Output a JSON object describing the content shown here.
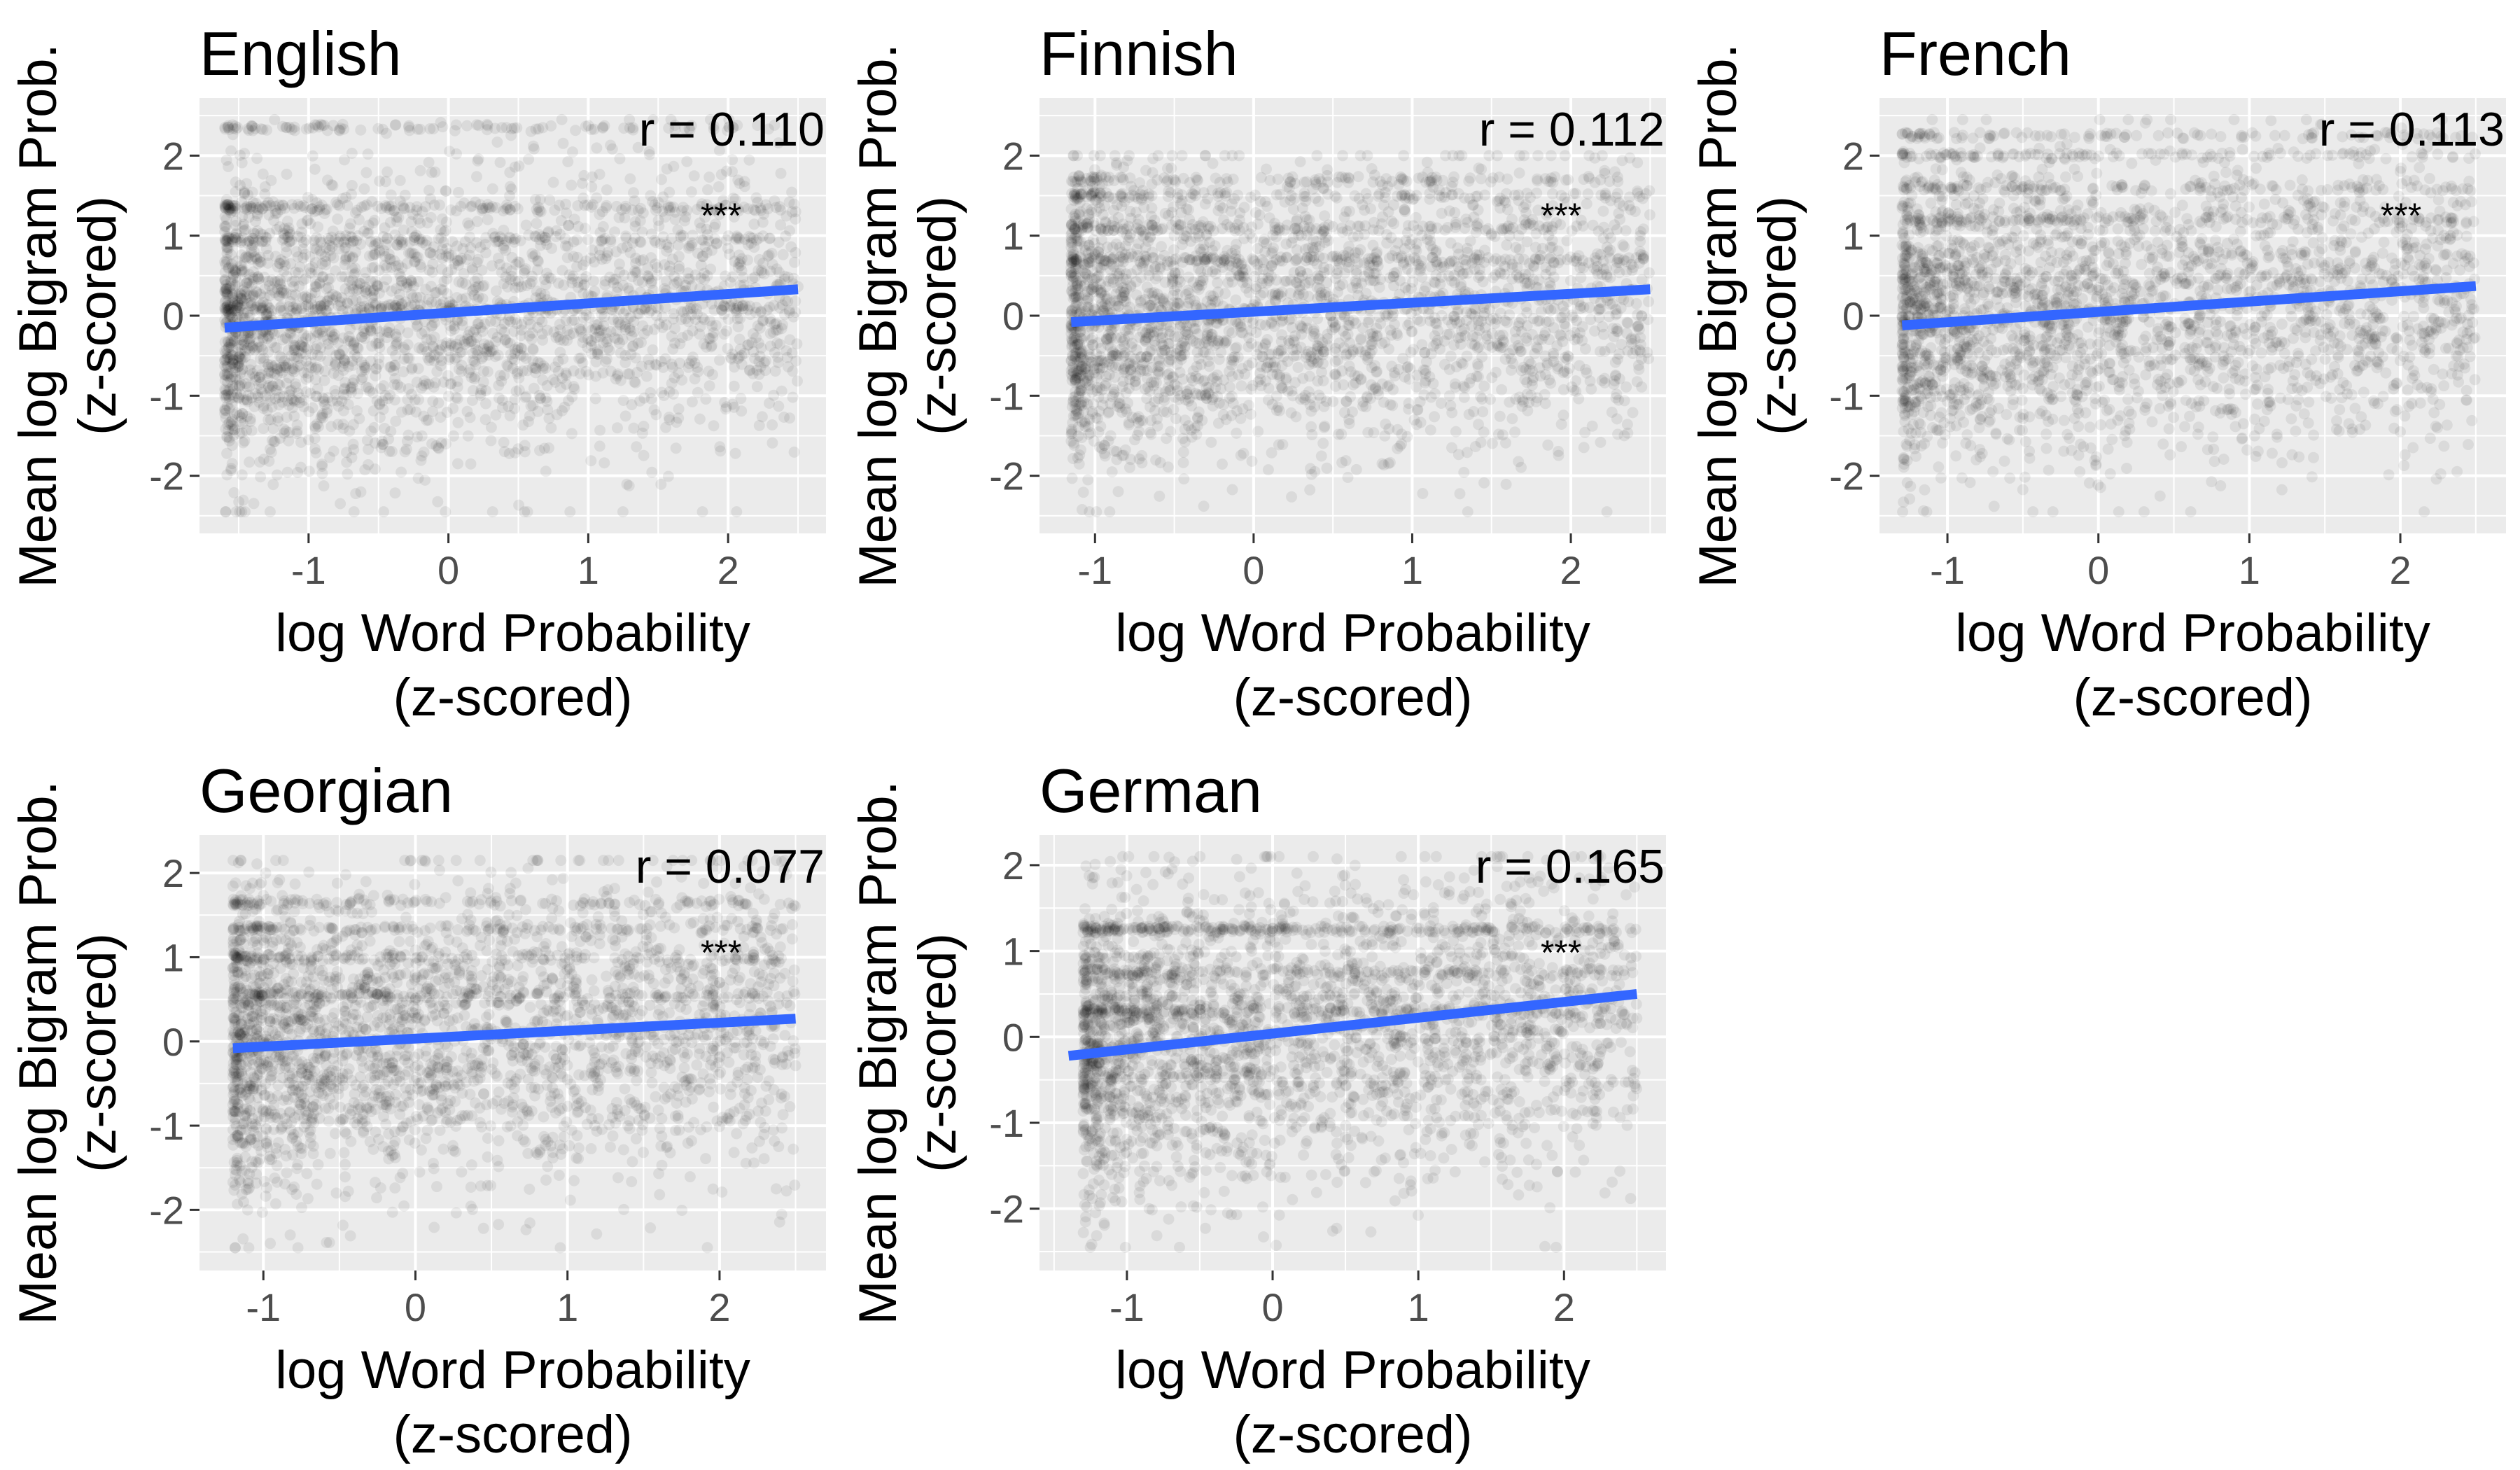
{
  "figure": {
    "xlabel_line1": "log Word Probability",
    "xlabel_line2": "(z-scored)",
    "ylabel_line1": "Mean log Bigram Prob.",
    "ylabel_line2": "(z-scored)"
  },
  "colors": {
    "panel_bg": "#ebebeb",
    "grid": "#ffffff",
    "point": "#000000",
    "fit_line": "#3366ff",
    "tick_label": "#4d4d4d"
  },
  "chart_data": [
    {
      "type": "scatter",
      "title": "English",
      "xlabel": "log Word Probability (z-scored)",
      "ylabel": "Mean log Bigram Prob. (z-scored)",
      "xlim": [
        -1.78,
        2.7
      ],
      "ylim": [
        -2.72,
        2.72
      ],
      "xticks": [
        -1,
        0,
        1,
        2
      ],
      "yticks": [
        -2,
        -1,
        0,
        1,
        2
      ],
      "grid": true,
      "fit": {
        "x": [
          -1.6,
          2.5
        ],
        "y": [
          -0.15,
          0.33
        ]
      },
      "annotation": {
        "r_text": "r = 0.110",
        "sig_text": "***"
      },
      "points": {
        "n": 3000,
        "x_range": [
          -1.6,
          2.5
        ],
        "y_range": [
          -2.45,
          2.45
        ],
        "bands": [
          2.35,
          1.35,
          0.95,
          0.1
        ]
      }
    },
    {
      "type": "scatter",
      "title": "Finnish",
      "xlabel": "log Word Probability (z-scored)",
      "ylabel": "Mean log Bigram Prob. (z-scored)",
      "xlim": [
        -1.35,
        2.6
      ],
      "ylim": [
        -2.72,
        2.72
      ],
      "xticks": [
        -1,
        0,
        1,
        2
      ],
      "yticks": [
        -2,
        -1,
        0,
        1,
        2
      ],
      "grid": true,
      "fit": {
        "x": [
          -1.15,
          2.5
        ],
        "y": [
          -0.08,
          0.33
        ]
      },
      "annotation": {
        "r_text": "r = 0.112",
        "sig_text": "***"
      },
      "points": {
        "n": 3000,
        "x_range": [
          -1.15,
          2.5
        ],
        "y_range": [
          -2.45,
          2.0
        ],
        "bands": [
          1.7,
          1.5,
          1.1,
          0.7
        ]
      }
    },
    {
      "type": "scatter",
      "title": "French",
      "xlabel": "log Word Probability (z-scored)",
      "ylabel": "Mean log Bigram Prob. (z-scored)",
      "xlim": [
        -1.45,
        2.7
      ],
      "ylim": [
        -2.72,
        2.72
      ],
      "xticks": [
        -1,
        0,
        1,
        2
      ],
      "yticks": [
        -2,
        -1,
        0,
        1,
        2
      ],
      "grid": true,
      "fit": {
        "x": [
          -1.3,
          2.5
        ],
        "y": [
          -0.12,
          0.37
        ]
      },
      "annotation": {
        "r_text": "r = 0.113",
        "sig_text": "***"
      },
      "points": {
        "n": 3000,
        "x_range": [
          -1.3,
          2.5
        ],
        "y_range": [
          -2.45,
          2.45
        ],
        "bands": [
          2.25,
          2.0,
          1.6,
          1.2
        ]
      }
    },
    {
      "type": "scatter",
      "title": "Georgian",
      "xlabel": "log Word Probability (z-scored)",
      "ylabel": "Mean log Bigram Prob. (z-scored)",
      "xlim": [
        -1.42,
        2.7
      ],
      "ylim": [
        -2.72,
        2.45
      ],
      "xticks": [
        -1,
        0,
        1,
        2
      ],
      "yticks": [
        -2,
        -1,
        0,
        1,
        2
      ],
      "grid": true,
      "fit": {
        "x": [
          -1.2,
          2.5
        ],
        "y": [
          -0.08,
          0.27
        ]
      },
      "annotation": {
        "r_text": "r = 0.077",
        "sig_text": "***"
      },
      "points": {
        "n": 3000,
        "x_range": [
          -1.2,
          2.5
        ],
        "y_range": [
          -2.45,
          2.15
        ],
        "bands": [
          1.65,
          1.35,
          1.0,
          0.55
        ]
      }
    },
    {
      "type": "scatter",
      "title": "German",
      "xlabel": "log Word Probability (z-scored)",
      "ylabel": "Mean log Bigram Prob. (z-scored)",
      "xlim": [
        -1.6,
        2.7
      ],
      "ylim": [
        -2.72,
        2.35
      ],
      "xticks": [
        -1,
        0,
        1,
        2
      ],
      "yticks": [
        -2,
        -1,
        0,
        1,
        2
      ],
      "grid": true,
      "fit": {
        "x": [
          -1.4,
          2.5
        ],
        "y": [
          -0.22,
          0.5
        ]
      },
      "annotation": {
        "r_text": "r = 0.165",
        "sig_text": "***"
      },
      "points": {
        "n": 3000,
        "x_range": [
          -1.3,
          2.5
        ],
        "y_range": [
          -2.45,
          2.1
        ],
        "bands": [
          1.25,
          1.25,
          0.75,
          0.3
        ]
      }
    }
  ]
}
